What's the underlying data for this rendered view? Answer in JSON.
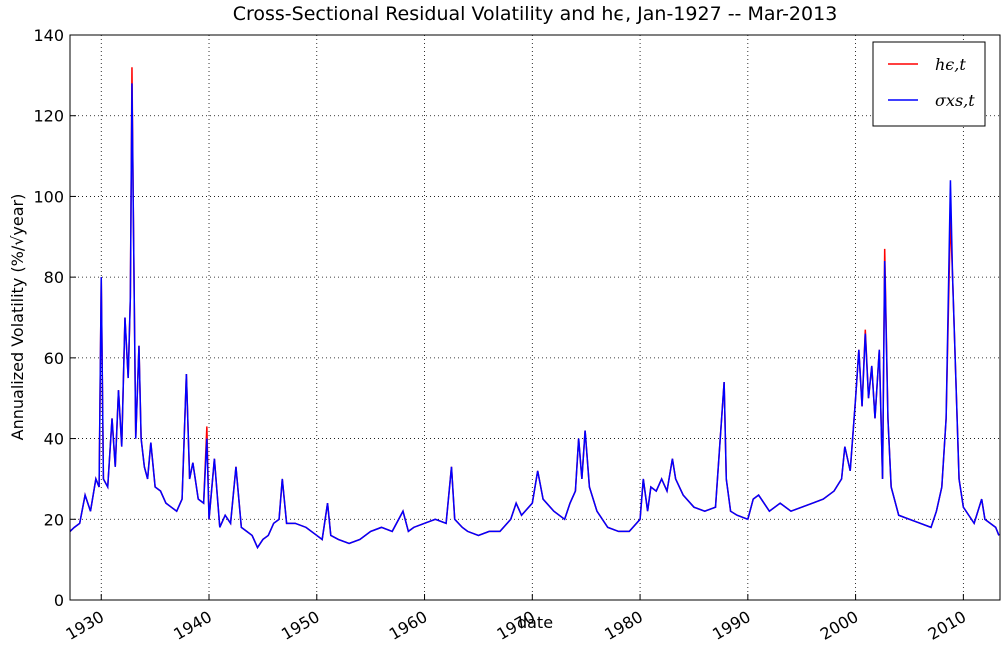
{
  "chart_data": {
    "type": "line",
    "title": "Cross-Sectional Residual Volatility and hϵ, Jan-1927 -- Mar-2013",
    "xlabel": "date",
    "ylabel": "Annualized Volatility (%/√year)",
    "x": [
      1927.1,
      1927.5,
      1928.0,
      1928.5,
      1929.0,
      1929.5,
      1929.8,
      1930.0,
      1930.2,
      1930.6,
      1931.0,
      1931.3,
      1931.6,
      1931.9,
      1932.2,
      1932.5,
      1932.7,
      1932.85,
      1933.0,
      1933.2,
      1933.5,
      1933.7,
      1934.0,
      1934.3,
      1934.6,
      1935.0,
      1935.5,
      1936.0,
      1936.5,
      1937.0,
      1937.5,
      1937.9,
      1938.2,
      1938.5,
      1939.0,
      1939.5,
      1939.8,
      1940.0,
      1940.5,
      1941.0,
      1941.5,
      1942.0,
      1942.5,
      1943.0,
      1943.5,
      1944.0,
      1944.5,
      1945.0,
      1945.5,
      1946.0,
      1946.5,
      1946.8,
      1947.2,
      1948.0,
      1949.0,
      1950.0,
      1950.5,
      1951.0,
      1951.3,
      1952.0,
      1953.0,
      1954.0,
      1955.0,
      1956.0,
      1957.0,
      1958.0,
      1958.5,
      1959.0,
      1960.0,
      1961.0,
      1962.0,
      1962.5,
      1962.8,
      1963.5,
      1964.0,
      1965.0,
      1966.0,
      1967.0,
      1968.0,
      1968.5,
      1969.0,
      1970.0,
      1970.5,
      1971.0,
      1972.0,
      1973.0,
      1973.5,
      1974.0,
      1974.3,
      1974.6,
      1974.9,
      1975.3,
      1976.0,
      1977.0,
      1978.0,
      1979.0,
      1980.0,
      1980.3,
      1980.7,
      1981.0,
      1981.5,
      1982.0,
      1982.5,
      1983.0,
      1983.3,
      1984.0,
      1985.0,
      1986.0,
      1987.0,
      1987.8,
      1988.0,
      1988.4,
      1989.0,
      1990.0,
      1990.5,
      1991.0,
      1992.0,
      1993.0,
      1994.0,
      1995.0,
      1996.0,
      1997.0,
      1998.0,
      1998.7,
      1999.0,
      1999.5,
      2000.0,
      2000.3,
      2000.6,
      2000.9,
      2001.2,
      2001.5,
      2001.8,
      2002.2,
      2002.5,
      2002.7,
      2003.0,
      2003.3,
      2004.0,
      2005.0,
      2006.0,
      2007.0,
      2007.5,
      2008.0,
      2008.4,
      2008.8,
      2009.0,
      2009.3,
      2009.6,
      2010.0,
      2010.5,
      2011.0,
      2011.7,
      2012.0,
      2013.0,
      2013.3
    ],
    "series": [
      {
        "name": "hϵ,t",
        "color": "#ff0000",
        "values": [
          17,
          18,
          19,
          26,
          22,
          30,
          28,
          80,
          30,
          28,
          45,
          33,
          52,
          38,
          70,
          55,
          75,
          132,
          90,
          40,
          63,
          40,
          33,
          30,
          39,
          28,
          27,
          24,
          23,
          22,
          25,
          56,
          30,
          34,
          25,
          24,
          43,
          20,
          35,
          18,
          21,
          19,
          33,
          18,
          17,
          16,
          13,
          15,
          16,
          19,
          20,
          30,
          19,
          19,
          18,
          16,
          15,
          24,
          16,
          15,
          14,
          15,
          17,
          18,
          17,
          22,
          17,
          18,
          19,
          20,
          19,
          33,
          20,
          18,
          17,
          16,
          17,
          17,
          20,
          24,
          21,
          24,
          32,
          25,
          22,
          20,
          24,
          27,
          40,
          30,
          42,
          28,
          22,
          18,
          17,
          17,
          20,
          30,
          22,
          28,
          27,
          30,
          27,
          35,
          30,
          26,
          23,
          22,
          23,
          54,
          30,
          22,
          21,
          20,
          25,
          26,
          22,
          24,
          22,
          23,
          24,
          25,
          27,
          30,
          38,
          32,
          50,
          62,
          48,
          67,
          50,
          58,
          45,
          62,
          30,
          87,
          45,
          28,
          21,
          20,
          19,
          18,
          22,
          28,
          45,
          95,
          80,
          55,
          30,
          23,
          21,
          19,
          25,
          20,
          18,
          16
        ]
      },
      {
        "name": "σxs,t",
        "color": "#0000ff",
        "values": [
          17,
          18,
          19,
          26,
          22,
          30,
          28,
          80,
          30,
          28,
          45,
          33,
          52,
          38,
          70,
          55,
          75,
          128,
          90,
          40,
          63,
          40,
          33,
          30,
          39,
          28,
          27,
          24,
          23,
          22,
          25,
          56,
          30,
          34,
          25,
          24,
          40,
          20,
          35,
          18,
          21,
          19,
          33,
          18,
          17,
          16,
          13,
          15,
          16,
          19,
          20,
          30,
          19,
          19,
          18,
          16,
          15,
          24,
          16,
          15,
          14,
          15,
          17,
          18,
          17,
          22,
          17,
          18,
          19,
          20,
          19,
          33,
          20,
          18,
          17,
          16,
          17,
          17,
          20,
          24,
          21,
          24,
          32,
          25,
          22,
          20,
          24,
          27,
          40,
          30,
          42,
          28,
          22,
          18,
          17,
          17,
          20,
          30,
          22,
          28,
          27,
          30,
          27,
          35,
          30,
          26,
          23,
          22,
          23,
          54,
          30,
          22,
          21,
          20,
          25,
          26,
          22,
          24,
          22,
          23,
          24,
          25,
          27,
          30,
          38,
          32,
          50,
          62,
          48,
          66,
          50,
          58,
          45,
          62,
          30,
          84,
          45,
          28,
          21,
          20,
          19,
          18,
          22,
          28,
          45,
          104,
          80,
          55,
          30,
          23,
          21,
          19,
          25,
          20,
          18,
          16
        ]
      }
    ],
    "xlim": [
      1927.1,
      2013.4
    ],
    "xticks": [
      1930,
      1940,
      1950,
      1960,
      1970,
      1980,
      1990,
      2000,
      2010
    ],
    "ylim": [
      0,
      140
    ],
    "yticks": [
      0,
      20,
      40,
      60,
      80,
      100,
      120,
      140
    ],
    "grid": true,
    "legend": "upper right"
  }
}
